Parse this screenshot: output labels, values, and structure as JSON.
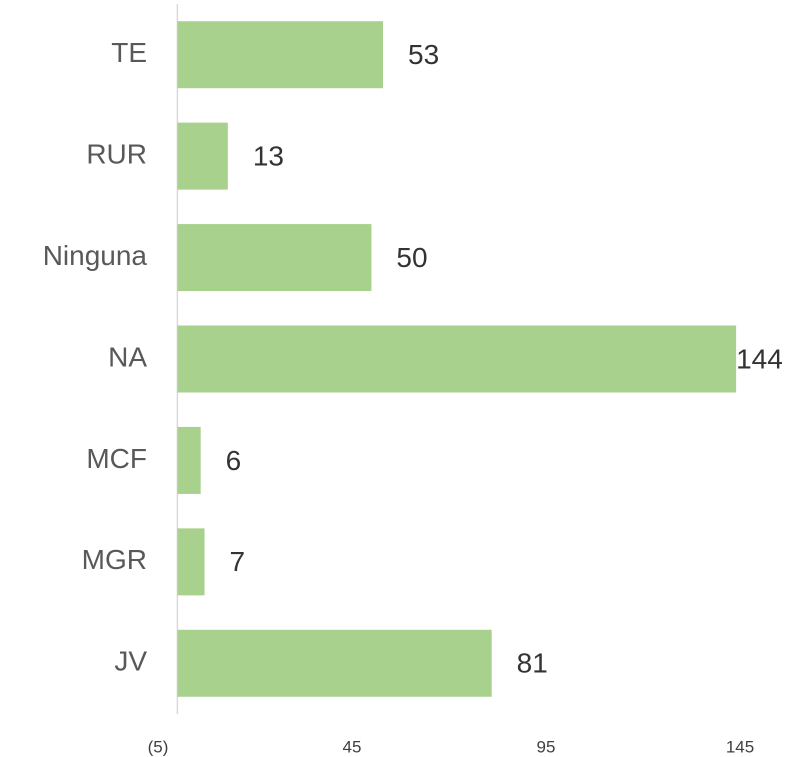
{
  "chart_data": {
    "type": "barh",
    "categories": [
      "TE",
      "RUR",
      "Ninguna",
      "NA",
      "MCF",
      "MGR",
      "JV"
    ],
    "values": [
      53,
      13,
      50,
      144,
      6,
      7,
      81
    ],
    "color": "#a9d18e",
    "xlim": [
      -5,
      145
    ],
    "xticks": [
      {
        "value": -5,
        "label": "(5)"
      },
      45,
      95,
      145
    ]
  }
}
